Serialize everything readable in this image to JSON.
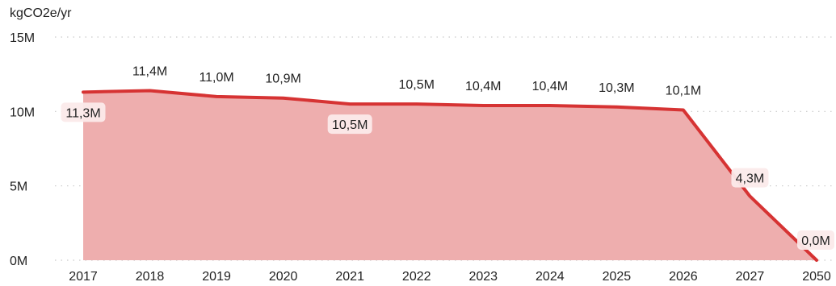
{
  "chart_data": {
    "type": "area",
    "unit_label": "kgCO2e/yr",
    "categories": [
      "2017",
      "2018",
      "2019",
      "2020",
      "2021",
      "2022",
      "2023",
      "2024",
      "2025",
      "2026",
      "2027",
      "2050"
    ],
    "values": [
      11300000,
      11400000,
      11000000,
      10900000,
      10500000,
      10500000,
      10400000,
      10400000,
      10300000,
      10100000,
      4300000,
      0
    ],
    "data_labels": [
      "11,3M",
      "11,4M",
      "11,0M",
      "10,9M",
      "10,5M",
      "10,5M",
      "10,4M",
      "10,4M",
      "10,3M",
      "10,1M",
      "4,3M",
      "0,0M"
    ],
    "data_label_boxed": [
      true,
      false,
      false,
      false,
      true,
      false,
      false,
      false,
      false,
      false,
      true,
      true
    ],
    "data_label_side": [
      "below",
      "above",
      "above",
      "above",
      "below",
      "above",
      "above",
      "above",
      "above",
      "above",
      "inline",
      "above"
    ],
    "y_ticks": [
      {
        "value": 0,
        "label": "0M"
      },
      {
        "value": 5000000,
        "label": "5M"
      },
      {
        "value": 10000000,
        "label": "10M"
      },
      {
        "value": 15000000,
        "label": "15M"
      }
    ],
    "ylim": [
      0,
      15000000
    ],
    "grid": "horizontal-dotted",
    "colors": {
      "line": "#d63333",
      "fill": "#eeaeae",
      "label_box": "#fbeaea"
    }
  }
}
